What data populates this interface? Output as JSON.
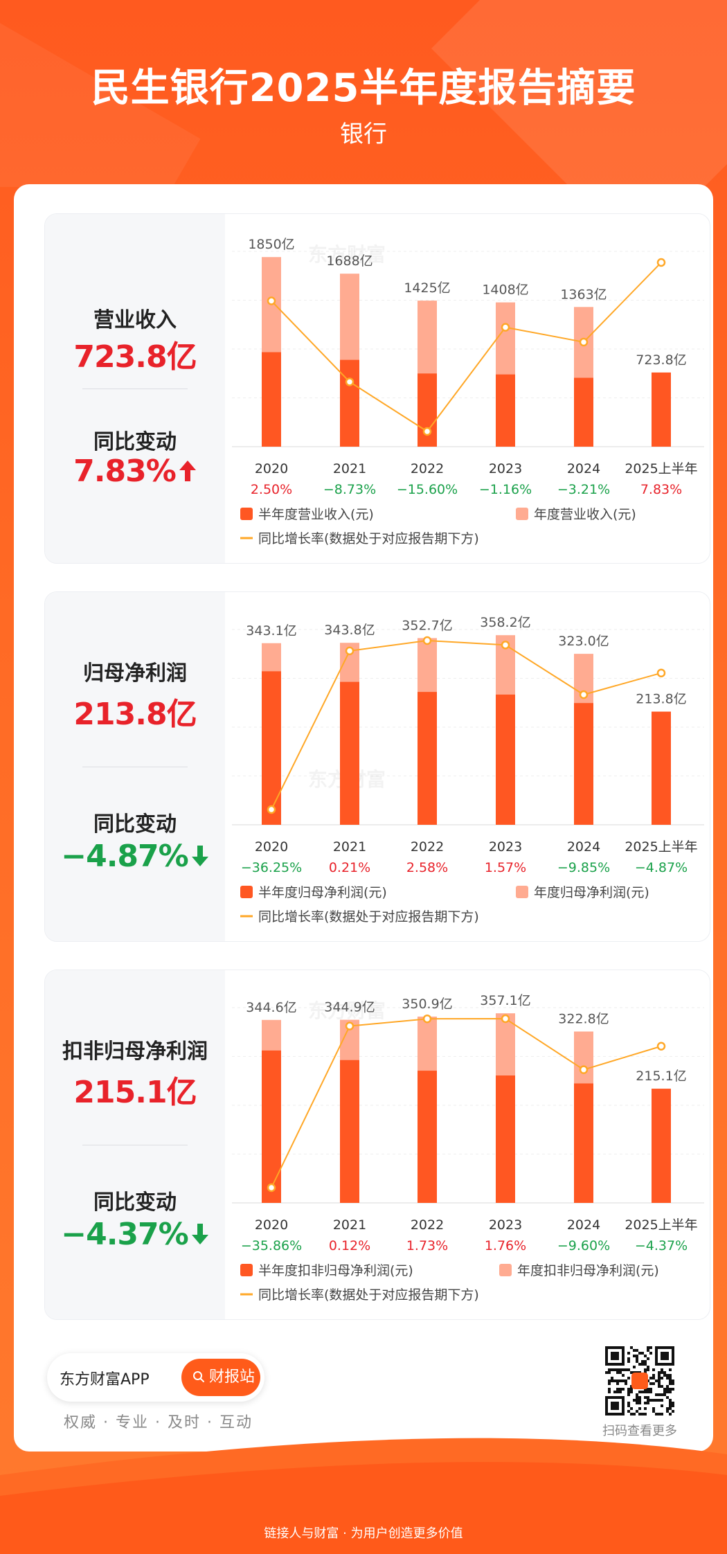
{
  "header": {
    "title": "民生银行2025半年度报告摘要",
    "subtitle": "银行"
  },
  "colors": {
    "half_bar": "#ff5722",
    "annual_bar": "#ffab91",
    "line": "#ffa726",
    "positive": "#e8222a",
    "negative": "#1aa14a"
  },
  "watermark": "东方财富",
  "common": {
    "yoy_label": "同比变动",
    "growth_legend": "同比增长率(数据处于对应报告期下方)"
  },
  "chart_data": [
    {
      "type": "bar",
      "metric": "营业收入",
      "current_value": "723.8亿",
      "yoy_change": "7.83%",
      "yoy_direction": "up",
      "categories": [
        "2020",
        "2021",
        "2022",
        "2023",
        "2024",
        "2025上半年"
      ],
      "series": [
        {
          "name": "半年度营业收入(元)",
          "values": [
            922.0,
            847.0,
            714.0,
            705.0,
            672.0,
            723.8
          ]
        },
        {
          "name": "年度营业收入(元)",
          "values": [
            1850,
            1688,
            1425,
            1408,
            1363,
            null
          ]
        }
      ],
      "bar_labels": [
        "1850亿",
        "1688亿",
        "1425亿",
        "1408亿",
        "1363亿",
        "723.8亿"
      ],
      "growth_rate": {
        "name": "同比增长率(数据处于对应报告期下方)",
        "values": [
          2.5,
          -8.73,
          -15.6,
          -1.16,
          -3.21,
          7.83
        ],
        "labels": [
          "2.50%",
          "−8.73%",
          "−15.60%",
          "−1.16%",
          "−3.21%",
          "7.83%"
        ]
      }
    },
    {
      "type": "bar",
      "metric": "归母净利润",
      "current_value": "213.8亿",
      "yoy_change": "−4.87%",
      "yoy_direction": "down",
      "categories": [
        "2020",
        "2021",
        "2022",
        "2023",
        "2024",
        "2025上半年"
      ],
      "series": [
        {
          "name": "半年度归母净利润(元)",
          "values": [
            290.0,
            270.0,
            251.0,
            246.0,
            230.0,
            213.8
          ]
        },
        {
          "name": "年度归母净利润(元)",
          "values": [
            343.1,
            343.8,
            352.7,
            358.2,
            323.0,
            null
          ]
        }
      ],
      "bar_labels": [
        "343.1亿",
        "343.8亿",
        "352.7亿",
        "358.2亿",
        "323.0亿",
        "213.8亿"
      ],
      "growth_rate": {
        "name": "同比增长率(数据处于对应报告期下方)",
        "values": [
          -36.25,
          0.21,
          2.58,
          1.57,
          -9.85,
          -4.87
        ],
        "labels": [
          "−36.25%",
          "0.21%",
          "2.58%",
          "1.57%",
          "−9.85%",
          "−4.87%"
        ]
      }
    },
    {
      "type": "bar",
      "metric": "扣非归母净利润",
      "current_value": "215.1亿",
      "yoy_change": "−4.37%",
      "yoy_direction": "down",
      "categories": [
        "2020",
        "2021",
        "2022",
        "2023",
        "2024",
        "2025上半年"
      ],
      "series": [
        {
          "name": "半年度扣非归母净利润(元)",
          "values": [
            287.0,
            269.0,
            249.0,
            240.0,
            225.0,
            215.1
          ]
        },
        {
          "name": "年度扣非归母净利润(元)",
          "values": [
            344.6,
            344.9,
            350.9,
            357.1,
            322.8,
            null
          ]
        }
      ],
      "bar_labels": [
        "344.6亿",
        "344.9亿",
        "350.9亿",
        "357.1亿",
        "322.8亿",
        "215.1亿"
      ],
      "growth_rate": {
        "name": "同比增长率(数据处于对应报告期下方)",
        "values": [
          -35.86,
          0.12,
          1.73,
          1.76,
          -9.6,
          -4.37
        ],
        "labels": [
          "−35.86%",
          "0.12%",
          "1.73%",
          "1.76%",
          "−9.60%",
          "−4.37%"
        ]
      }
    }
  ],
  "footer": {
    "brand": "东方财富APP",
    "button": "财报站",
    "slogan": "权威 · 专业 · 及时 · 互动",
    "qr_caption": "扫码查看更多",
    "bottom_text": "链接人与财富 · 为用户创造更多价值"
  }
}
